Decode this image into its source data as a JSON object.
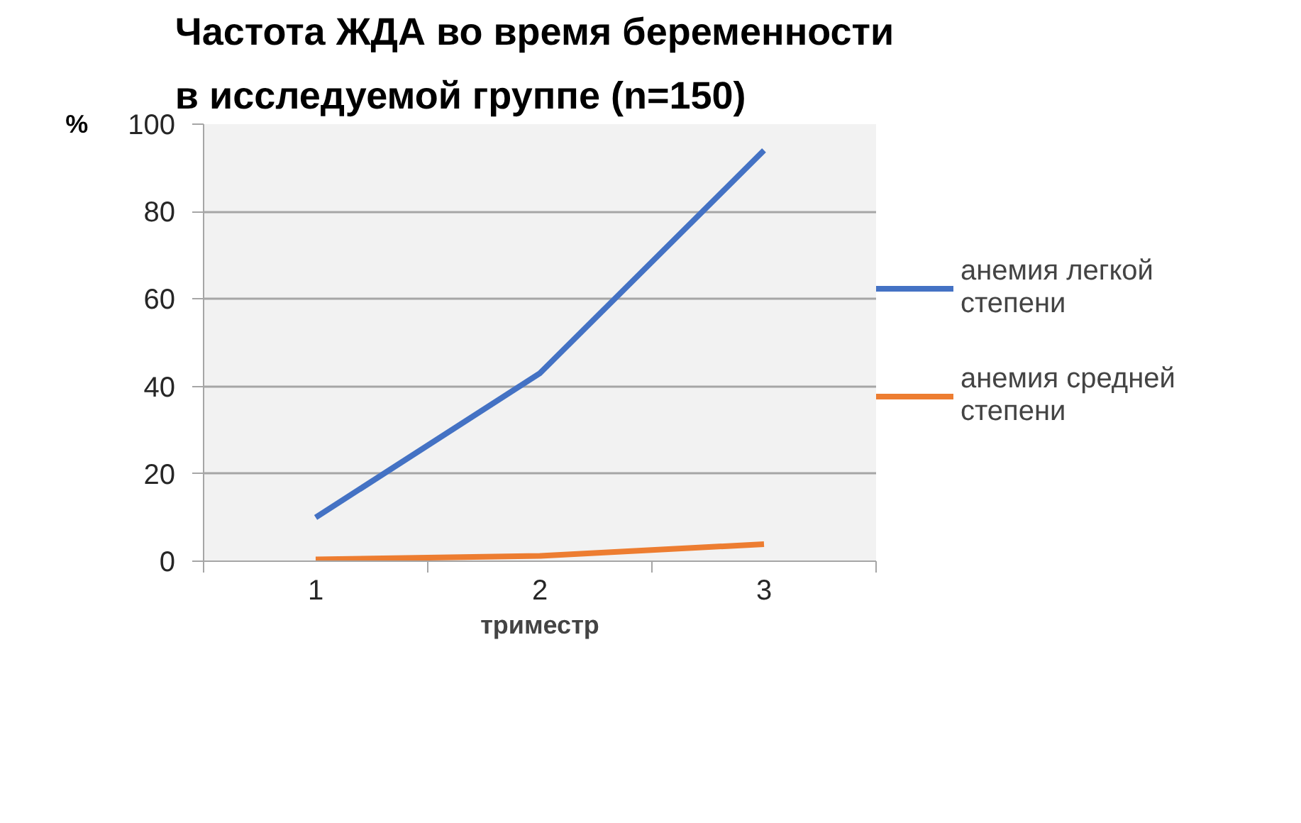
{
  "chart_data": {
    "type": "line",
    "title": "Частота ЖДА  во время беременности в исследуемой группе (n=150)",
    "xlabel": "триместр",
    "ylabel": "%",
    "categories": [
      "1",
      "2",
      "3"
    ],
    "series": [
      {
        "name": "анемия легкой степени",
        "color": "#4472c4",
        "values": [
          10,
          43,
          94
        ]
      },
      {
        "name": "анемия средней степени",
        "color": "#ed7d31",
        "values": [
          0.4,
          1.2,
          3.9
        ]
      }
    ],
    "ylim": [
      0,
      100
    ],
    "yticks": [
      0,
      20,
      40,
      60,
      80,
      100
    ],
    "grid": "y",
    "legend": "right"
  }
}
